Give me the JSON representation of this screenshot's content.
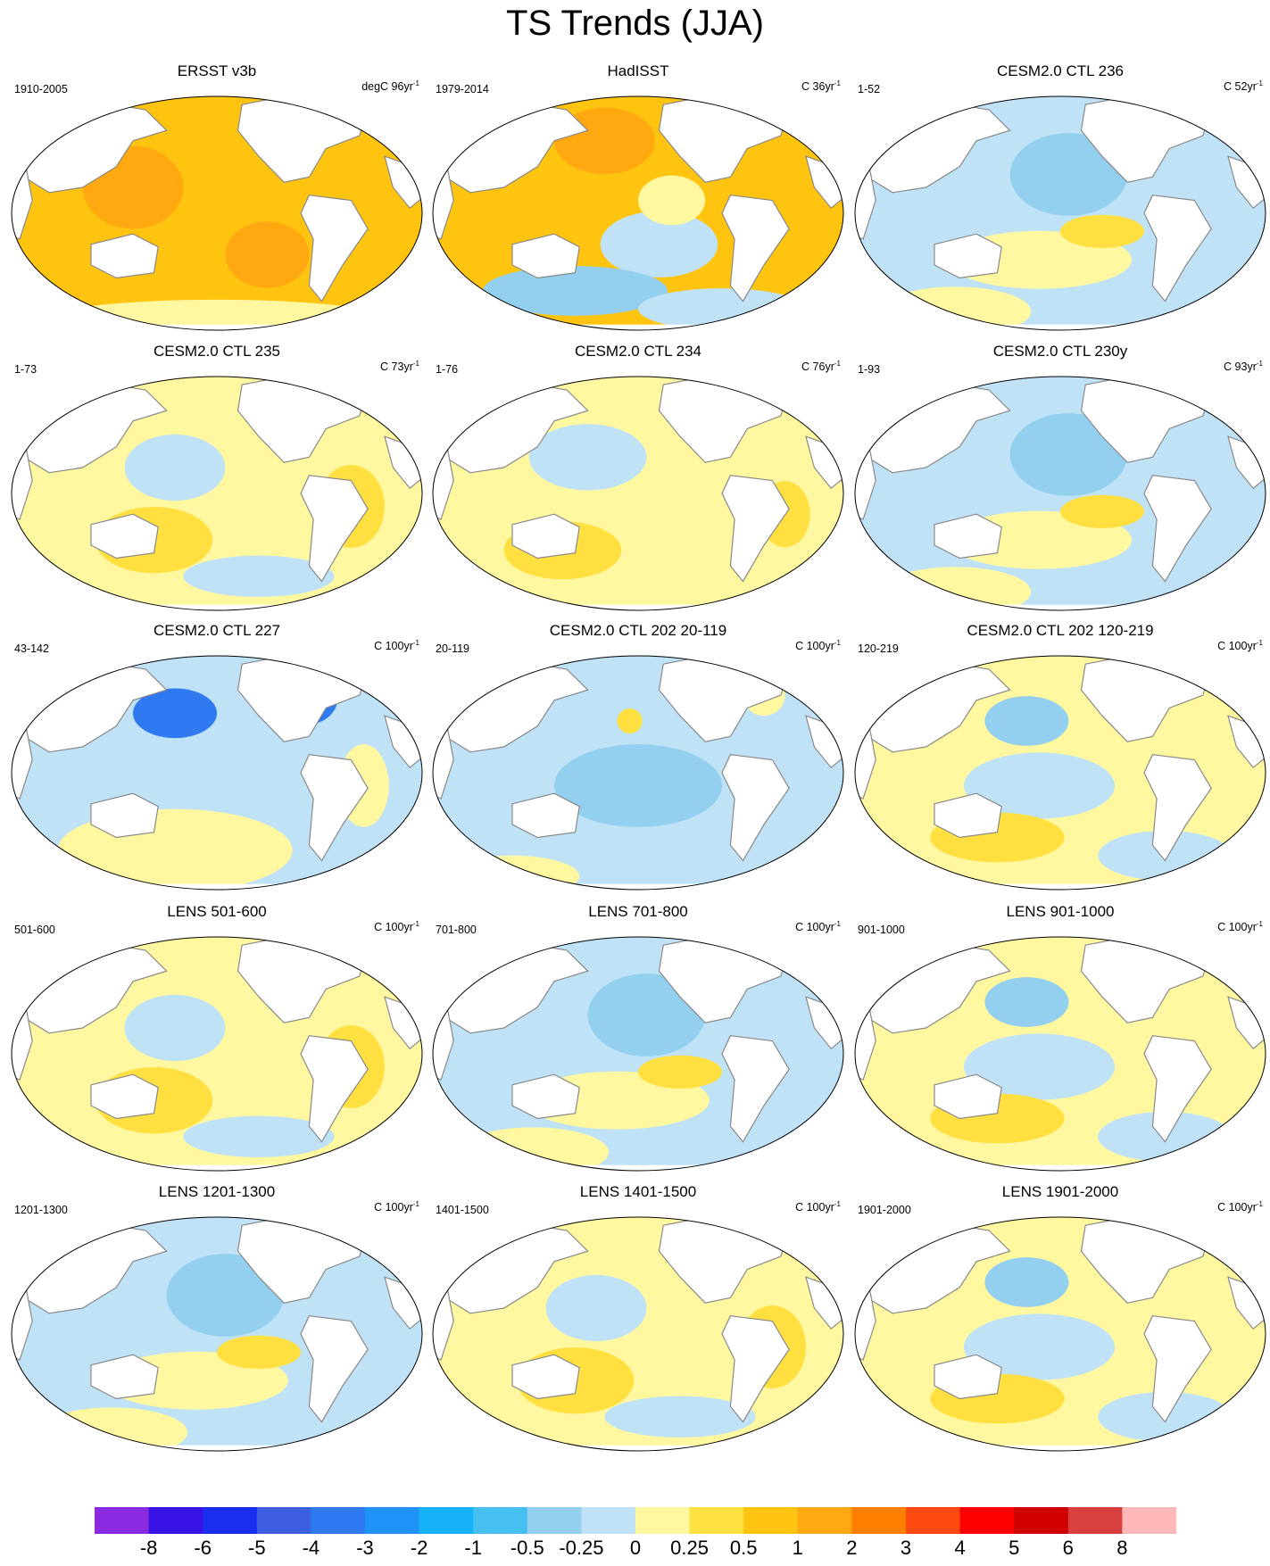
{
  "title": "TS Trends (JJA)",
  "colors": {
    "land": "#ffffff",
    "coast": "#888888",
    "outline": "#000000"
  },
  "panels": [
    {
      "title": "ERSST v3b",
      "range": "1910-2005",
      "units": "degC 96yr",
      "units_exp": "-1",
      "pattern": "warm_uniform"
    },
    {
      "title": "HadISST",
      "range": "1979-2014",
      "units": "C 36yr",
      "units_exp": "-1",
      "pattern": "warm_mixed"
    },
    {
      "title": "CESM2.0 CTL 236",
      "range": "1-52",
      "units": "C 52yr",
      "units_exp": "-1",
      "pattern": "cool_mixed"
    },
    {
      "title": "CESM2.0 CTL 235",
      "range": "1-73",
      "units": "C 73yr",
      "units_exp": "-1",
      "pattern": "mixed_yellow"
    },
    {
      "title": "CESM2.0 CTL 234",
      "range": "1-76",
      "units": "C 76yr",
      "units_exp": "-1",
      "pattern": "mixed_yellow_blob"
    },
    {
      "title": "CESM2.0 CTL 230y",
      "range": "1-93",
      "units": "C 93yr",
      "units_exp": "-1",
      "pattern": "cool_mixed"
    },
    {
      "title": "CESM2.0 CTL 227",
      "range": "43-142",
      "units": "C 100yr",
      "units_exp": "-1",
      "pattern": "cool_north_blob"
    },
    {
      "title": "CESM2.0 CTL 202 20-119",
      "range": "20-119",
      "units": "C 100yr",
      "units_exp": "-1",
      "pattern": "cool_uniform"
    },
    {
      "title": "CESM2.0 CTL 202 120-219",
      "range": "120-219",
      "units": "C 100yr",
      "units_exp": "-1",
      "pattern": "mixed_warm_north"
    },
    {
      "title": "LENS 501-600",
      "range": "501-600",
      "units": "C 100yr",
      "units_exp": "-1",
      "pattern": "mixed_yellow"
    },
    {
      "title": "LENS 701-800",
      "range": "701-800",
      "units": "C 100yr",
      "units_exp": "-1",
      "pattern": "cool_mixed"
    },
    {
      "title": "LENS 901-1000",
      "range": "901-1000",
      "units": "C 100yr",
      "units_exp": "-1",
      "pattern": "mixed_warm_north"
    },
    {
      "title": "LENS 1201-1300",
      "range": "1201-1300",
      "units": "C 100yr",
      "units_exp": "-1",
      "pattern": "cool_mixed"
    },
    {
      "title": "LENS 1401-1500",
      "range": "1401-1500",
      "units": "C 100yr",
      "units_exp": "-1",
      "pattern": "mixed_yellow"
    },
    {
      "title": "LENS 1901-2000",
      "range": "1901-2000",
      "units": "C 100yr",
      "units_exp": "-1",
      "pattern": "mixed_warm_north"
    }
  ],
  "colorbar": {
    "colors": [
      "#8a2be2",
      "#3a14e6",
      "#1a2ef0",
      "#3b5fe0",
      "#2f7af0",
      "#1f93f8",
      "#16b3f8",
      "#45c0f0",
      "#93cfee",
      "#bfe2f6",
      "#fff8a0",
      "#ffe040",
      "#ffc40f",
      "#ffa80f",
      "#ff8000",
      "#ff4a10",
      "#ff0000",
      "#d00000",
      "#d84040",
      "#ffb8b8"
    ],
    "labels": [
      "-8",
      "-6",
      "-5",
      "-4",
      "-3",
      "-2",
      "-1",
      "-0.5",
      "-0.25",
      "0",
      "0.25",
      "0.5",
      "1",
      "2",
      "3",
      "4",
      "5",
      "6",
      "8"
    ]
  }
}
